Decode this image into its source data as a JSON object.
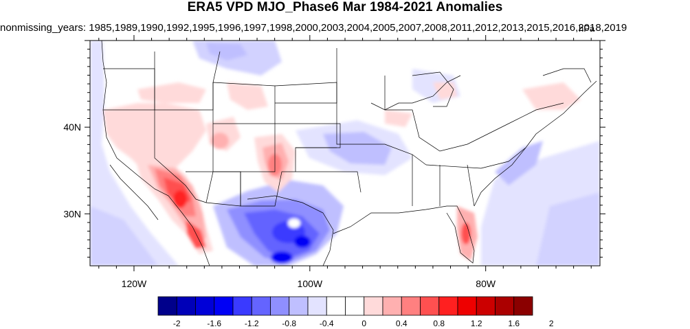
{
  "title": "ERA5 VPD MJO_Phase6 Mar 1984-2021 Anomalies",
  "subtitle": "nonmissing_years: 1985,1989,1990,1992,1995,1996,1997,1998,2000,2003,2004,2005,2007,2008,2011,2012,2013,2015,2016,2018,2019",
  "units": "hPa",
  "map": {
    "lon_range": [
      -125,
      -67
    ],
    "lat_range": [
      24,
      50
    ],
    "lon_ticks": [
      {
        "value": -120,
        "label": "120W"
      },
      {
        "value": -100,
        "label": "100W"
      },
      {
        "value": -80,
        "label": "80W"
      }
    ],
    "lat_ticks": [
      {
        "value": 40,
        "label": "40N"
      },
      {
        "value": 30,
        "label": "30N"
      }
    ]
  },
  "colorbar": {
    "colors": [
      "#00008b",
      "#0000b8",
      "#0000d8",
      "#0000f5",
      "#3a3aff",
      "#6464ff",
      "#8f8fff",
      "#bfbfff",
      "#e3e3ff",
      "#ffffff",
      "#ffffff",
      "#ffdada",
      "#ffb0b0",
      "#ff8080",
      "#ff5050",
      "#ff2020",
      "#ee0000",
      "#cc0000",
      "#ab0000",
      "#8b0000"
    ],
    "labels": [
      "-2",
      "-1.6",
      "-1.2",
      "-0.8",
      "-0.4",
      "0",
      "0.4",
      "0.8",
      "1.2",
      "1.6",
      "2"
    ]
  },
  "anomaly_patches": [
    {
      "region": "Southern Arizona / Sonora",
      "value": 1.6
    },
    {
      "region": "Southern California / Baja",
      "value": 1.2
    },
    {
      "region": "Gulf of California coast",
      "value": 1.2
    },
    {
      "region": "Colorado / New Mexico border",
      "value": 0.8
    },
    {
      "region": "Northern Utah",
      "value": 0.6
    },
    {
      "region": "Nevada",
      "value": 0.4
    },
    {
      "region": "Southern Florida",
      "value": 0.8
    },
    {
      "region": "West Texas / Chihuahua",
      "value": -1.2
    },
    {
      "region": "Coahuila",
      "value": -1.4
    },
    {
      "region": "Oklahoma / Arkansas",
      "value": -0.4
    },
    {
      "region": "Northern Montana",
      "value": -0.4
    },
    {
      "region": "Atlantic coast",
      "value": -0.4
    },
    {
      "region": "Pacific coast",
      "value": -0.2
    }
  ]
}
